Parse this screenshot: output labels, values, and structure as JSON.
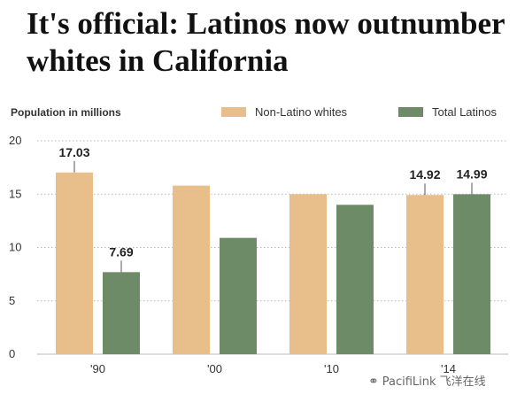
{
  "headline": "It's official: Latinos now outnumber whites in California",
  "watermark": {
    "icon": "wechat-icon",
    "text": "PacifiLink 飞洋在线"
  },
  "colors": {
    "non_latino_whites": "#e8bf8b",
    "total_latinos": "#6e8b68",
    "grid": "#bbbbbb"
  },
  "chart_data": {
    "type": "bar",
    "title": "",
    "ylabel": "Population in millions",
    "xlabel": "",
    "ylim": [
      0,
      20
    ],
    "yticks": [
      0,
      5,
      10,
      15,
      20
    ],
    "grid": true,
    "legend_position": "top-right",
    "categories": [
      "'90",
      "'00",
      "'10",
      "'14"
    ],
    "series": [
      {
        "name": "Non-Latino whites",
        "values": [
          17.03,
          15.8,
          15.0,
          14.92
        ],
        "labels": [
          "17.03",
          "",
          "",
          "14.92"
        ]
      },
      {
        "name": "Total Latinos",
        "values": [
          7.69,
          10.9,
          14.0,
          14.99
        ],
        "labels": [
          "7.69",
          "",
          "",
          "14.99"
        ]
      }
    ]
  }
}
